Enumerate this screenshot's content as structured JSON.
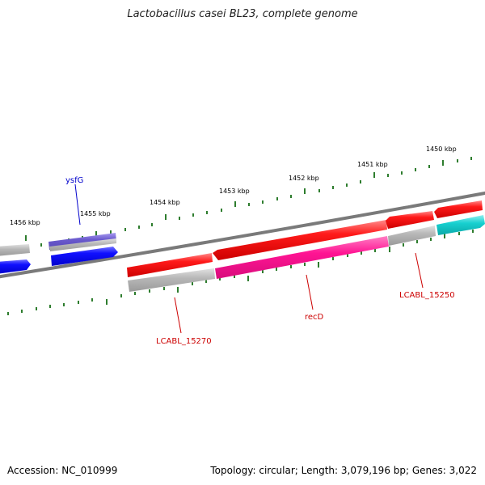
{
  "title": "Lactobacillus casei BL23, complete genome",
  "accession": "Accession: NC_010999",
  "summary": "Topology: circular; Length: 3,079,196 bp; Genes: 3,022",
  "tick_labels": [
    "1450 kbp",
    "1451 kbp",
    "1452 kbp",
    "1453 kbp",
    "1454 kbp",
    "1455 kbp",
    "1456 kbp"
  ],
  "gene_labels": {
    "ysfG": "ysfG",
    "recD": "recD",
    "lcabl_15250": "LCABL_15250",
    "lcabl_15270": "LCABL_15270"
  },
  "colors": {
    "backbone": "#7a7a7a",
    "tick": "#2e7d2e",
    "cds_red": "#e60000",
    "cds_blue": "#0000ee",
    "cds_purple": "#6a5acd",
    "cds_magenta": "#ff1493",
    "cds_cyan": "#11cccc",
    "cds_gray": "#b0b0b0",
    "label_blue": "#0000cc",
    "label_red": "#cc0000"
  }
}
